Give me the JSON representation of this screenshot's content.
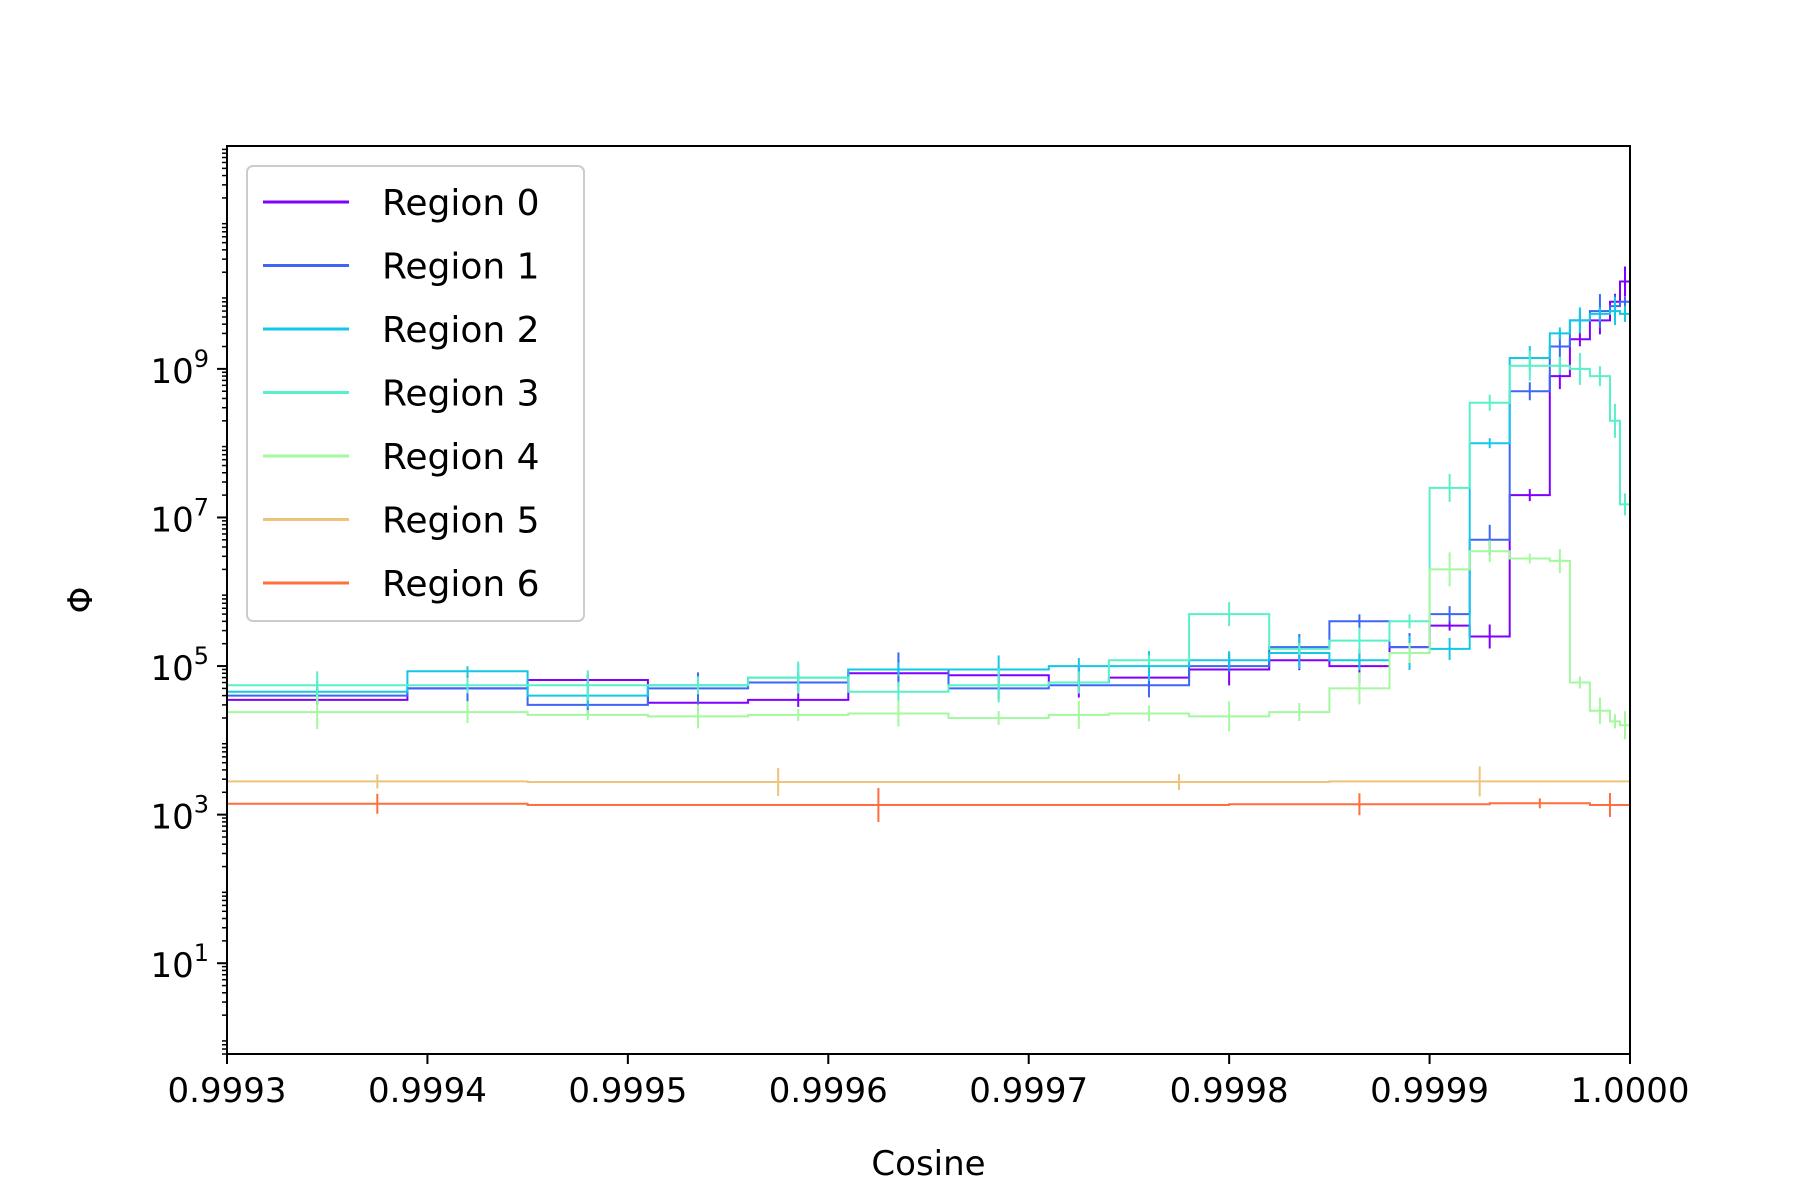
{
  "chart_data": {
    "type": "line",
    "title": "",
    "xlabel": "Cosine",
    "ylabel": "Φ",
    "xscale": "linear",
    "yscale": "log",
    "xlim": [
      0.9993,
      1.0
    ],
    "ylim": [
      0.6,
      1000000000000
    ],
    "grid": false,
    "legend_position": "upper-left",
    "x_ticks": [
      0.9993,
      0.9994,
      0.9995,
      0.9996,
      0.9997,
      0.9998,
      0.9999,
      1.0
    ],
    "x_tick_labels": [
      "0.9993",
      "0.9994",
      "0.9995",
      "0.9996",
      "0.9997",
      "0.9998",
      "0.9999",
      "1.0000"
    ],
    "y_ticks": [
      10,
      1000,
      100000,
      10000000,
      1000000000
    ],
    "y_tick_bases": [
      "10",
      "10",
      "10",
      "10",
      "10"
    ],
    "y_tick_exponents": [
      "1",
      "3",
      "5",
      "7",
      "9"
    ],
    "series": [
      {
        "name": "Region 0",
        "color": "#8000ff",
        "steps": [
          [
            0.9993,
            0.99939,
            35000
          ],
          [
            0.99939,
            0.99945,
            50000
          ],
          [
            0.99945,
            0.99951,
            65000
          ],
          [
            0.99951,
            0.99956,
            32000
          ],
          [
            0.99956,
            0.99961,
            35000
          ],
          [
            0.99961,
            0.99966,
            80000
          ],
          [
            0.99966,
            0.99971,
            75000
          ],
          [
            0.99971,
            0.99974,
            60000
          ],
          [
            0.99974,
            0.99978,
            70000
          ],
          [
            0.99978,
            0.99982,
            90000
          ],
          [
            0.99982,
            0.99985,
            120000
          ],
          [
            0.99985,
            0.99988,
            100000
          ],
          [
            0.99988,
            0.9999,
            180000
          ],
          [
            0.9999,
            0.99992,
            350000
          ],
          [
            0.99992,
            0.99994,
            250000
          ],
          [
            0.99994,
            0.99996,
            20000000
          ],
          [
            0.99996,
            0.99997,
            800000000
          ],
          [
            0.99997,
            0.99998,
            2500000000
          ],
          [
            0.99998,
            0.99999,
            4500000000
          ],
          [
            0.99999,
            0.999995,
            8000000000
          ],
          [
            0.999995,
            1.0,
            15000000000
          ]
        ]
      },
      {
        "name": "Region 1",
        "color": "#3d66f5",
        "steps": [
          [
            0.9993,
            0.99939,
            40000
          ],
          [
            0.99939,
            0.99945,
            50000
          ],
          [
            0.99945,
            0.99951,
            30000
          ],
          [
            0.99951,
            0.99956,
            50000
          ],
          [
            0.99956,
            0.99961,
            60000
          ],
          [
            0.99961,
            0.99966,
            90000
          ],
          [
            0.99966,
            0.99971,
            50000
          ],
          [
            0.99971,
            0.99974,
            55000
          ],
          [
            0.99974,
            0.99978,
            55000
          ],
          [
            0.99978,
            0.99982,
            100000
          ],
          [
            0.99982,
            0.99985,
            180000
          ],
          [
            0.99985,
            0.99988,
            400000
          ],
          [
            0.99988,
            0.9999,
            180000
          ],
          [
            0.9999,
            0.99992,
            500000
          ],
          [
            0.99992,
            0.99994,
            5000000
          ],
          [
            0.99994,
            0.99996,
            500000000
          ],
          [
            0.99996,
            0.99997,
            2000000000
          ],
          [
            0.99997,
            0.99998,
            4500000000
          ],
          [
            0.99998,
            0.99999,
            6000000000
          ],
          [
            0.99999,
            0.999995,
            7000000000
          ],
          [
            0.999995,
            1.0,
            8000000000
          ]
        ]
      },
      {
        "name": "Region 2",
        "color": "#12c8e6",
        "steps": [
          [
            0.9993,
            0.99939,
            45000
          ],
          [
            0.99939,
            0.99945,
            85000
          ],
          [
            0.99945,
            0.99951,
            40000
          ],
          [
            0.99951,
            0.99956,
            55000
          ],
          [
            0.99956,
            0.99961,
            70000
          ],
          [
            0.99961,
            0.99966,
            90000
          ],
          [
            0.99966,
            0.99971,
            90000
          ],
          [
            0.99971,
            0.99974,
            100000
          ],
          [
            0.99974,
            0.99978,
            100000
          ],
          [
            0.99978,
            0.99982,
            120000
          ],
          [
            0.99982,
            0.99985,
            150000
          ],
          [
            0.99985,
            0.99988,
            120000
          ],
          [
            0.99988,
            0.9999,
            150000
          ],
          [
            0.9999,
            0.99992,
            170000
          ],
          [
            0.99992,
            0.99994,
            100000000
          ],
          [
            0.99994,
            0.99996,
            1400000000
          ],
          [
            0.99996,
            0.99997,
            3000000000
          ],
          [
            0.99997,
            0.99998,
            4500000000
          ],
          [
            0.99998,
            0.99999,
            5500000000
          ],
          [
            0.99999,
            0.999995,
            6000000000
          ],
          [
            0.999995,
            1.0,
            5500000000
          ]
        ]
      },
      {
        "name": "Region 3",
        "color": "#58f0c8",
        "steps": [
          [
            0.9993,
            0.99939,
            55000
          ],
          [
            0.99939,
            0.99945,
            55000
          ],
          [
            0.99945,
            0.99951,
            55000
          ],
          [
            0.99951,
            0.99956,
            55000
          ],
          [
            0.99956,
            0.99961,
            70000
          ],
          [
            0.99961,
            0.99966,
            45000
          ],
          [
            0.99966,
            0.99971,
            55000
          ],
          [
            0.99971,
            0.99974,
            60000
          ],
          [
            0.99974,
            0.99978,
            120000
          ],
          [
            0.99978,
            0.99982,
            500000
          ],
          [
            0.99982,
            0.99985,
            170000
          ],
          [
            0.99985,
            0.99988,
            220000
          ],
          [
            0.99988,
            0.9999,
            400000
          ],
          [
            0.9999,
            0.99992,
            25000000
          ],
          [
            0.99992,
            0.99994,
            350000000
          ],
          [
            0.99994,
            0.99996,
            1100000000
          ],
          [
            0.99996,
            0.99997,
            1100000000
          ],
          [
            0.99997,
            0.99998,
            1000000000
          ],
          [
            0.99998,
            0.99999,
            800000000
          ],
          [
            0.99999,
            0.999995,
            200000000
          ],
          [
            0.999995,
            1.0,
            15000000
          ]
        ]
      },
      {
        "name": "Region 4",
        "color": "#a4f89e",
        "steps": [
          [
            0.9993,
            0.99939,
            24000
          ],
          [
            0.99939,
            0.99945,
            24000
          ],
          [
            0.99945,
            0.99951,
            22000
          ],
          [
            0.99951,
            0.99956,
            21000
          ],
          [
            0.99956,
            0.99961,
            22000
          ],
          [
            0.99961,
            0.99966,
            23000
          ],
          [
            0.99966,
            0.99971,
            20000
          ],
          [
            0.99971,
            0.99974,
            22000
          ],
          [
            0.99974,
            0.99978,
            23000
          ],
          [
            0.99978,
            0.99982,
            21000
          ],
          [
            0.99982,
            0.99985,
            24000
          ],
          [
            0.99985,
            0.99988,
            50000
          ],
          [
            0.99988,
            0.9999,
            150000
          ],
          [
            0.9999,
            0.99992,
            2000000
          ],
          [
            0.99992,
            0.99994,
            3500000
          ],
          [
            0.99994,
            0.99996,
            2800000
          ],
          [
            0.99996,
            0.99997,
            2600000
          ],
          [
            0.99997,
            0.99998,
            60000
          ],
          [
            0.99998,
            0.99999,
            25000
          ],
          [
            0.99999,
            0.999995,
            18000
          ],
          [
            0.999995,
            1.0,
            16000
          ]
        ]
      },
      {
        "name": "Region 5",
        "color": "#eec47a",
        "steps": [
          [
            0.9993,
            0.99945,
            2800
          ],
          [
            0.99945,
            0.9997,
            2750
          ],
          [
            0.9997,
            0.99985,
            2750
          ],
          [
            0.99985,
            1.0,
            2800
          ]
        ]
      },
      {
        "name": "Region 6",
        "color": "#ff6e3c",
        "steps": [
          [
            0.9993,
            0.99945,
            1400
          ],
          [
            0.99945,
            0.9998,
            1350
          ],
          [
            0.9998,
            0.99993,
            1380
          ],
          [
            0.99993,
            0.99998,
            1420
          ],
          [
            0.99998,
            1.0,
            1350
          ]
        ]
      }
    ]
  }
}
